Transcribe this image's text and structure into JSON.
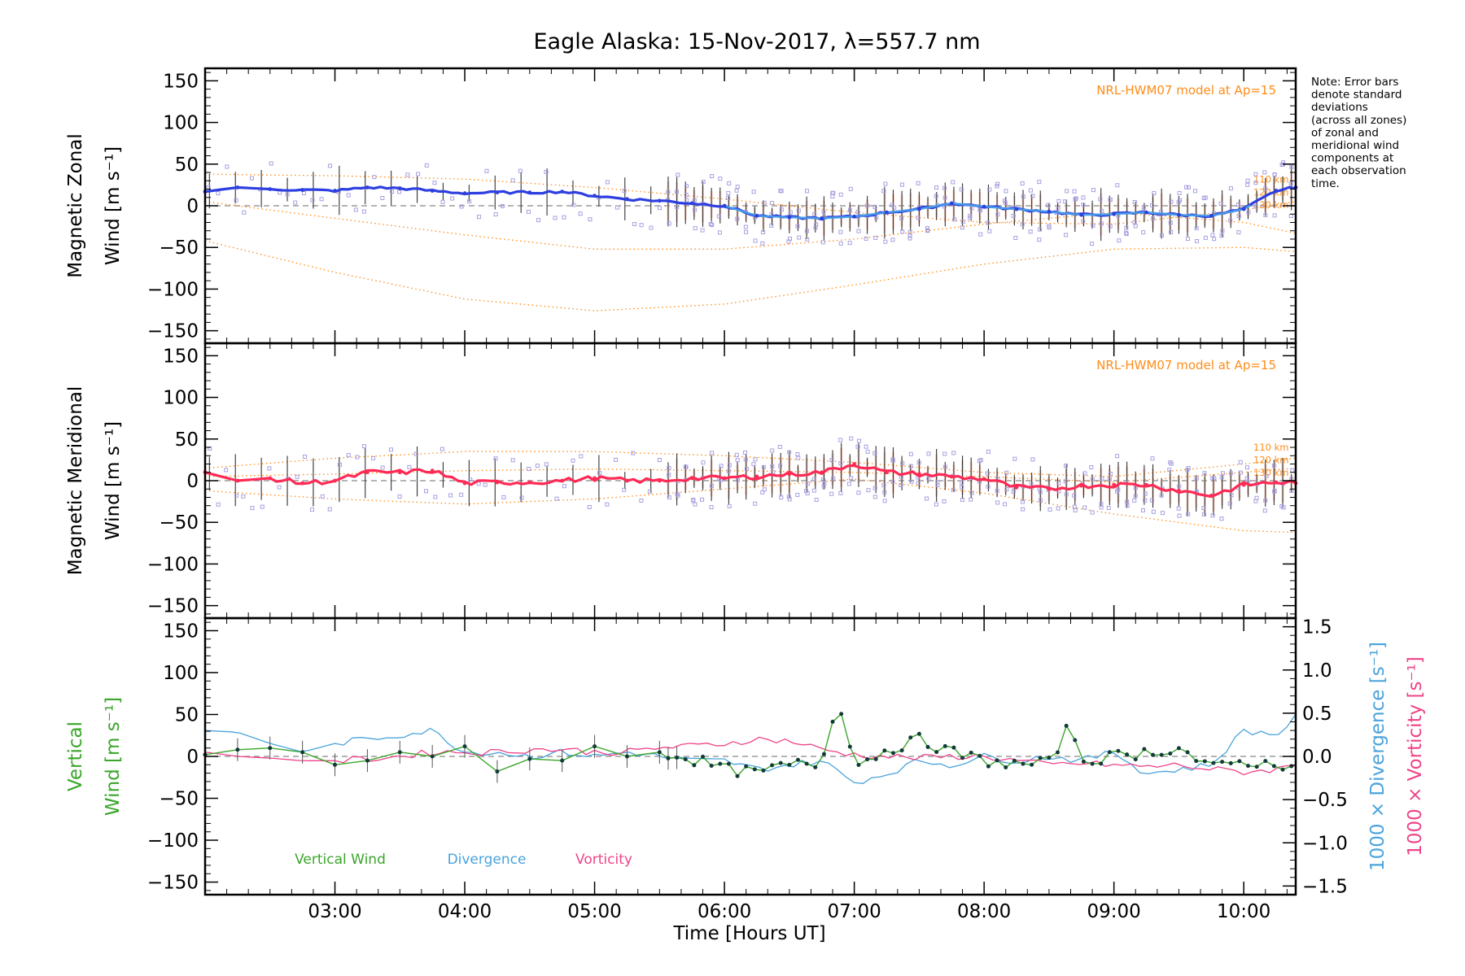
{
  "title": "Eagle Alaska: 15-Nov-2017, λ=557.7 nm",
  "note": [
    "Note: Error bars",
    "denote standard",
    "deviations",
    "(across all zones)",
    "of zonal and",
    "meridional wind",
    "components at",
    "each observation",
    "time."
  ],
  "model_label": "NRL-HWM07 model at Ap=15",
  "altitude_labels": [
    "110 km",
    "120 km",
    "130 km"
  ],
  "xlabel": "Time [Hours UT]",
  "x_ticks": [
    "03:00",
    "04:00",
    "05:00",
    "06:00",
    "07:00",
    "08:00",
    "09:00",
    "10:00"
  ],
  "y_ticks": [
    "150",
    "100",
    "50",
    "0",
    "−50",
    "−100",
    "−150"
  ],
  "y2_ticks": [
    "1.5",
    "1.0",
    "0.5",
    "0.0",
    "−0.5",
    "−1.0",
    "−1.5"
  ],
  "panels": {
    "zonal": {
      "ylabel_line1": "Magnetic Zonal",
      "ylabel_line2": "Wind [m s⁻¹]"
    },
    "meridional": {
      "ylabel_line1": "Magnetic Meridional",
      "ylabel_line2": "Wind [m s⁻¹]"
    },
    "vertical": {
      "ylabel_line1": "Vertical",
      "ylabel_line2": "Wind [m s⁻¹]",
      "y2label_div": "1000 × Divergence [s⁻¹]",
      "y2label_vort": "1000 × Vorticity [s⁻¹]"
    }
  },
  "legend": [
    "Vertical Wind",
    "Divergence",
    "Vorticity"
  ],
  "colors": {
    "zonal": "#2d3fe0",
    "zonal_light": "#4aa3e8",
    "meridional": "#ff2a55",
    "vertical": "#3aa62a",
    "divergence": "#4aa3dc",
    "vorticity": "#ee4488",
    "model": "#ff8c1a",
    "samples": "#a8a0e0"
  },
  "chart_data": [
    {
      "type": "line",
      "panel": "zonal",
      "title": "Eagle Alaska: 15-Nov-2017, λ=557.7 nm",
      "xlabel": "Time [Hours UT]",
      "ylabel": "Magnetic Zonal Wind [m s⁻¹]",
      "xlim": [
        "02:00",
        "10:24"
      ],
      "ylim": [
        -165,
        165
      ],
      "series": [
        {
          "x": [
            "02:00",
            "02:15",
            "02:30",
            "02:45",
            "03:00",
            "03:15",
            "03:30",
            "03:45",
            "04:00",
            "04:15",
            "04:30",
            "04:45",
            "05:00",
            "05:15",
            "05:30",
            "05:45",
            "06:00",
            "06:15",
            "06:30",
            "06:45",
            "07:00",
            "07:15",
            "07:30",
            "07:45",
            "08:00",
            "08:15",
            "08:30",
            "08:45",
            "09:00",
            "09:15",
            "09:30",
            "09:45",
            "10:00",
            "10:15",
            "10:24"
          ],
          "values": [
            17,
            22,
            20,
            19,
            18,
            22,
            21,
            18,
            15,
            16,
            16,
            17,
            12,
            8,
            6,
            3,
            0,
            -12,
            -14,
            -15,
            -13,
            -8,
            -4,
            3,
            -1,
            -4,
            -7,
            -11,
            -10,
            -8,
            -11,
            -12,
            -4,
            18,
            22
          ]
        },
        {
          "name": "110 km",
          "x": [
            "02:00",
            "03:00",
            "04:00",
            "05:00",
            "06:00",
            "07:00",
            "08:00",
            "09:00",
            "10:00",
            "10:24"
          ],
          "values": [
            38,
            36,
            32,
            22,
            8,
            -8,
            -20,
            -22,
            -5,
            5
          ]
        },
        {
          "name": "120 km",
          "x": [
            "02:00",
            "03:00",
            "04:00",
            "05:00",
            "06:00",
            "07:00",
            "08:00",
            "09:00",
            "10:00",
            "10:24"
          ],
          "values": [
            5,
            -15,
            -35,
            -52,
            -52,
            -40,
            -22,
            -8,
            -20,
            -33
          ]
        },
        {
          "name": "130 km",
          "x": [
            "02:00",
            "03:00",
            "04:00",
            "05:00",
            "06:00",
            "07:00",
            "08:00",
            "09:00",
            "10:00",
            "10:24"
          ],
          "values": [
            -42,
            -80,
            -112,
            -126,
            -118,
            -95,
            -70,
            -52,
            -50,
            -55
          ]
        }
      ]
    },
    {
      "type": "line",
      "panel": "meridional",
      "ylabel": "Magnetic Meridional Wind [m s⁻¹]",
      "ylim": [
        -165,
        165
      ],
      "series": [
        {
          "x": [
            "02:00",
            "02:15",
            "02:30",
            "02:45",
            "03:00",
            "03:15",
            "03:30",
            "03:45",
            "04:00",
            "04:15",
            "04:30",
            "04:45",
            "05:00",
            "05:15",
            "05:30",
            "05:45",
            "06:00",
            "06:15",
            "06:30",
            "06:45",
            "07:00",
            "07:15",
            "07:30",
            "07:45",
            "08:00",
            "08:15",
            "08:30",
            "08:45",
            "09:00",
            "09:15",
            "09:30",
            "09:45",
            "10:00",
            "10:15",
            "10:24"
          ],
          "values": [
            10,
            0,
            3,
            -3,
            0,
            10,
            10,
            12,
            -3,
            -2,
            -2,
            0,
            3,
            0,
            0,
            3,
            3,
            5,
            8,
            10,
            20,
            10,
            8,
            5,
            2,
            -8,
            -10,
            -6,
            -5,
            -5,
            -12,
            -18,
            -5,
            -2,
            -3
          ]
        },
        {
          "name": "110 km",
          "x": [
            "02:00",
            "03:00",
            "04:00",
            "05:00",
            "06:00",
            "07:00",
            "08:00",
            "09:00",
            "10:00",
            "10:24"
          ],
          "values": [
            15,
            27,
            35,
            35,
            30,
            22,
            10,
            5,
            20,
            27
          ]
        },
        {
          "name": "120 km",
          "x": [
            "02:00",
            "03:00",
            "04:00",
            "05:00",
            "06:00",
            "07:00",
            "08:00",
            "09:00",
            "10:00",
            "10:24"
          ],
          "values": [
            5,
            8,
            12,
            14,
            12,
            10,
            5,
            -2,
            10,
            15
          ]
        },
        {
          "name": "130 km",
          "x": [
            "02:00",
            "03:00",
            "04:00",
            "05:00",
            "06:00",
            "07:00",
            "08:00",
            "09:00",
            "10:00",
            "10:24"
          ],
          "values": [
            -12,
            -22,
            -28,
            -22,
            -10,
            2,
            -15,
            -40,
            -60,
            -62
          ]
        }
      ]
    },
    {
      "type": "line",
      "panel": "vertical",
      "ylabel": "Vertical Wind [m s⁻¹]",
      "ylim": [
        -165,
        165
      ],
      "y2lim": [
        -1.6,
        1.6
      ],
      "series": [
        {
          "name": "Vertical Wind",
          "x": [
            "02:00",
            "02:15",
            "02:30",
            "02:45",
            "03:00",
            "03:15",
            "03:30",
            "03:45",
            "04:00",
            "04:15",
            "04:30",
            "04:45",
            "05:00",
            "05:15",
            "05:30",
            "05:45",
            "06:00",
            "06:15",
            "06:30",
            "06:45",
            "06:50",
            "06:55",
            "07:00",
            "07:15",
            "07:30",
            "07:45",
            "08:00",
            "08:15",
            "08:30",
            "08:40",
            "08:45",
            "09:00",
            "09:15",
            "09:30",
            "09:45",
            "10:00",
            "10:15",
            "10:24"
          ],
          "values": [
            2,
            8,
            10,
            5,
            -10,
            -5,
            5,
            0,
            12,
            -18,
            -3,
            -5,
            12,
            0,
            5,
            -3,
            -15,
            -20,
            -10,
            -8,
            45,
            60,
            -12,
            8,
            20,
            5,
            -5,
            -10,
            -8,
            40,
            -5,
            0,
            5,
            10,
            -15,
            -5,
            -12,
            -5
          ]
        },
        {
          "name": "Divergence",
          "x": [
            "02:00",
            "02:15",
            "02:30",
            "02:45",
            "03:00",
            "03:15",
            "03:30",
            "03:45",
            "04:00",
            "04:15",
            "04:30",
            "04:45",
            "05:00",
            "05:15",
            "05:30",
            "05:45",
            "06:00",
            "06:15",
            "06:30",
            "06:45",
            "07:00",
            "07:15",
            "07:30",
            "07:45",
            "08:00",
            "08:15",
            "08:30",
            "08:45",
            "09:00",
            "09:15",
            "09:30",
            "09:45",
            "10:00",
            "10:15",
            "10:24"
          ],
          "values": [
            0.3,
            0.28,
            0.15,
            0.05,
            0.15,
            0.2,
            0.25,
            0.3,
            0.05,
            0.05,
            0.0,
            0.05,
            0.0,
            0.05,
            0.0,
            -0.05,
            -0.05,
            -0.15,
            -0.1,
            -0.05,
            -0.3,
            -0.2,
            -0.05,
            -0.1,
            0.0,
            -0.05,
            0.0,
            -0.05,
            0.05,
            -0.2,
            -0.15,
            -0.1,
            0.3,
            0.25,
            0.45
          ]
        },
        {
          "name": "Vorticity",
          "x": [
            "02:00",
            "02:15",
            "02:30",
            "02:45",
            "03:00",
            "03:15",
            "03:30",
            "03:45",
            "04:00",
            "04:15",
            "04:30",
            "04:45",
            "05:00",
            "05:15",
            "05:30",
            "05:45",
            "06:00",
            "06:15",
            "06:30",
            "06:45",
            "07:00",
            "07:15",
            "07:30",
            "07:45",
            "08:00",
            "08:15",
            "08:30",
            "08:45",
            "09:00",
            "09:15",
            "09:30",
            "09:45",
            "10:00",
            "10:15",
            "10:24"
          ],
          "values": [
            0.05,
            0.0,
            -0.02,
            -0.05,
            -0.05,
            -0.03,
            0.0,
            0.05,
            0.05,
            0.05,
            0.08,
            0.08,
            0.05,
            0.05,
            0.1,
            0.12,
            0.15,
            0.2,
            0.18,
            0.08,
            0.02,
            0.0,
            -0.02,
            0.0,
            0.0,
            -0.05,
            -0.1,
            -0.08,
            -0.1,
            -0.12,
            -0.1,
            -0.15,
            -0.18,
            -0.15,
            -0.1
          ]
        }
      ]
    }
  ]
}
